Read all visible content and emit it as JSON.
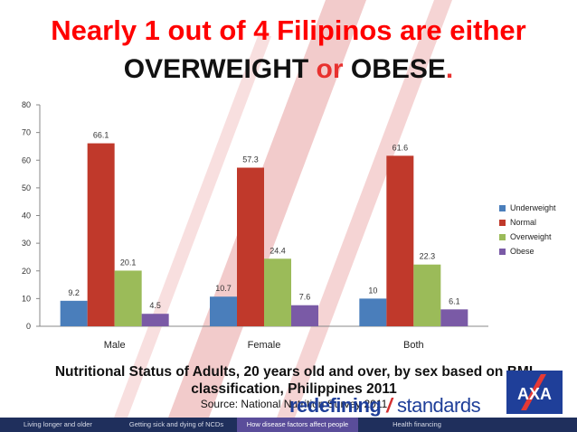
{
  "title": {
    "line1": "Nearly 1 out of 4 Filipinos are either",
    "part_overweight": "OVERWEIGHT",
    "part_or": "or",
    "part_obese": "OBESE",
    "period": "."
  },
  "caption": {
    "line1": "Nutritional Status of Adults, 20 years old and over, by sex based on BMI",
    "line2": "classification, Philippines 2011",
    "source": "Source: National Nutrition Survey 2011"
  },
  "brand": {
    "word1": "redefining",
    "slash": "/",
    "word2": "standards",
    "logo_text": "AXA"
  },
  "nav": {
    "items": [
      "Living longer and older",
      "Getting sick and dying of NCDs",
      "How disease factors affect people",
      "Health financing"
    ]
  },
  "colors": {
    "title_red": "#ff0000",
    "underweight": "#4a7ebb",
    "normal": "#c0392b",
    "overweight": "#9bbb59",
    "obese": "#7a5aa6",
    "nav_bg": "#1f2f5c",
    "nav_active": "#5a4d9a",
    "stripe": "#e8a0a0"
  },
  "chart_data": {
    "type": "bar",
    "categories": [
      "Male",
      "Female",
      "Both"
    ],
    "series": [
      {
        "name": "Underweight",
        "values": [
          9.2,
          10.7,
          10
        ]
      },
      {
        "name": "Normal",
        "values": [
          66.1,
          57.3,
          61.6
        ]
      },
      {
        "name": "Overweight",
        "values": [
          20.1,
          24.4,
          22.3
        ]
      },
      {
        "name": "Obese",
        "values": [
          4.5,
          7.6,
          6.1
        ]
      }
    ],
    "ylim": [
      0,
      80
    ],
    "yticks": [
      0,
      10,
      20,
      30,
      40,
      50,
      60,
      70,
      80
    ],
    "grid": false,
    "legend": "right",
    "data_labels": true
  }
}
